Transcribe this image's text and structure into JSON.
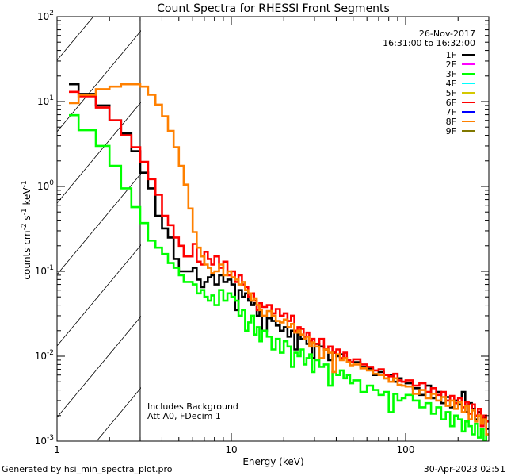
{
  "chart_data": {
    "type": "line",
    "style": "step",
    "title": "Count Spectra for RHESSI Front Segments",
    "xlabel": "Energy (keV)",
    "ylabel": {
      "base": "counts cm",
      "parts": [
        [
          "-2",
          " s"
        ],
        [
          "-1",
          " keV"
        ],
        [
          "-1",
          ""
        ]
      ]
    },
    "xscale": "log",
    "yscale": "log",
    "xlim": [
      1,
      300
    ],
    "ylim": [
      0.001,
      100
    ],
    "x_ticks": [
      {
        "value": 1,
        "label": "1"
      },
      {
        "value": 10,
        "label": "10"
      },
      {
        "value": 100,
        "label": "100"
      }
    ],
    "y_ticks": [
      {
        "value": 100,
        "base": "10",
        "exp": "2"
      },
      {
        "value": 10,
        "base": "10",
        "exp": "1"
      },
      {
        "value": 1,
        "base": "10",
        "exp": "0"
      },
      {
        "value": 0.1,
        "base": "10",
        "exp": "-1"
      },
      {
        "value": 0.01,
        "base": "10",
        "exp": "-2"
      },
      {
        "value": 0.001,
        "base": "10",
        "exp": "-3"
      }
    ],
    "shaded_region_keV": [
      1,
      3
    ],
    "date": "26-Nov-2017",
    "time_range": "16:31:00 to 16:32:00",
    "annotations": [
      "Includes Background",
      "Att A0, FDecim 1"
    ],
    "legend_placement": "top-right",
    "legend": [
      {
        "label": "1F",
        "color": "#000000"
      },
      {
        "label": "2F",
        "color": "#ff00ff"
      },
      {
        "label": "3F",
        "color": "#00ff00"
      },
      {
        "label": "4F",
        "color": "#00ffff"
      },
      {
        "label": "5F",
        "color": "#d4c800"
      },
      {
        "label": "6F",
        "color": "#ff0000"
      },
      {
        "label": "7F",
        "color": "#0000ff"
      },
      {
        "label": "8F",
        "color": "#ff8000"
      },
      {
        "label": "9F",
        "color": "#807800"
      }
    ],
    "energy_edges_keV": [
      1.17,
      1.33,
      1.67,
      2.0,
      2.33,
      2.67,
      3.0,
      3.33,
      3.67,
      4.0,
      4.33,
      4.67,
      5.0,
      5.33,
      5.67,
      6.0,
      6.33,
      6.67,
      7.0,
      7.33,
      7.67,
      8.0,
      8.5,
      9,
      9.5,
      10,
      10.5,
      11,
      11.5,
      12,
      12.5,
      13,
      13.5,
      14,
      14.5,
      15,
      16,
      17,
      18,
      19,
      20,
      21,
      22,
      23,
      24,
      25,
      26,
      27,
      28,
      29,
      30,
      32,
      34,
      36,
      38,
      40,
      42,
      44,
      46,
      48,
      50,
      55,
      60,
      65,
      70,
      75,
      80,
      85,
      90,
      95,
      100,
      110,
      120,
      130,
      140,
      150,
      160,
      170,
      180,
      190,
      200,
      210,
      220,
      230,
      240,
      250,
      260,
      270,
      280,
      290,
      300
    ],
    "series": [
      {
        "name": "1F",
        "color": "#000000",
        "values": [
          16,
          12.3,
          9.0,
          6.0,
          4.2,
          2.6,
          1.45,
          0.95,
          0.45,
          0.32,
          0.25,
          0.14,
          0.1,
          0.1,
          0.1,
          0.11,
          0.08,
          0.065,
          0.075,
          0.085,
          0.09,
          0.07,
          0.09,
          0.075,
          0.08,
          0.07,
          0.035,
          0.06,
          0.05,
          0.055,
          0.045,
          0.04,
          0.042,
          0.03,
          0.034,
          0.02,
          0.028,
          0.026,
          0.023,
          0.02,
          0.022,
          0.017,
          0.02,
          0.012,
          0.018,
          0.016,
          0.017,
          0.014,
          0.015,
          0.0095,
          0.014,
          0.013,
          0.012,
          0.009,
          0.011,
          0.01,
          0.0105,
          0.0095,
          0.009,
          0.0085,
          0.0085,
          0.0075,
          0.0072,
          0.006,
          0.0065,
          0.0055,
          0.006,
          0.005,
          0.0055,
          0.005,
          0.0048,
          0.0042,
          0.0035,
          0.0045,
          0.0032,
          0.0038,
          0.0028,
          0.0033,
          0.0025,
          0.003,
          0.0027,
          0.0038,
          0.0022,
          0.0028,
          0.0024,
          0.0018,
          0.0022,
          0.0016,
          0.0019,
          0.0014
        ]
      },
      {
        "name": "3F",
        "color": "#00ff00",
        "values": [
          6.9,
          4.6,
          3.0,
          1.75,
          0.95,
          0.57,
          0.37,
          0.23,
          0.19,
          0.16,
          0.125,
          0.11,
          0.09,
          0.075,
          0.075,
          0.07,
          0.055,
          0.06,
          0.05,
          0.045,
          0.052,
          0.04,
          0.06,
          0.045,
          0.055,
          0.05,
          0.045,
          0.03,
          0.035,
          0.02,
          0.025,
          0.03,
          0.018,
          0.022,
          0.015,
          0.02,
          0.017,
          0.012,
          0.016,
          0.011,
          0.015,
          0.013,
          0.0075,
          0.011,
          0.01,
          0.012,
          0.008,
          0.0095,
          0.0105,
          0.0065,
          0.009,
          0.0075,
          0.008,
          0.0045,
          0.0065,
          0.006,
          0.0068,
          0.0055,
          0.006,
          0.0048,
          0.0052,
          0.0038,
          0.0045,
          0.004,
          0.0035,
          0.0038,
          0.0022,
          0.0036,
          0.003,
          0.0032,
          0.0035,
          0.003,
          0.0025,
          0.0028,
          0.0021,
          0.0025,
          0.0018,
          0.0022,
          0.0015,
          0.002,
          0.0018,
          0.0013,
          0.0017,
          0.0015,
          0.0012,
          0.0016,
          0.0011,
          0.0014,
          0.001,
          0.0012
        ]
      },
      {
        "name": "6F",
        "color": "#ff0000",
        "values": [
          13,
          11.5,
          8.5,
          6.0,
          4.0,
          2.9,
          1.95,
          1.22,
          0.8,
          0.45,
          0.35,
          0.25,
          0.2,
          0.15,
          0.15,
          0.21,
          0.13,
          0.12,
          0.17,
          0.14,
          0.12,
          0.15,
          0.11,
          0.13,
          0.09,
          0.1,
          0.075,
          0.09,
          0.07,
          0.065,
          0.05,
          0.055,
          0.045,
          0.035,
          0.042,
          0.038,
          0.04,
          0.032,
          0.036,
          0.03,
          0.032,
          0.026,
          0.03,
          0.02,
          0.022,
          0.021,
          0.017,
          0.019,
          0.015,
          0.016,
          0.014,
          0.016,
          0.012,
          0.013,
          0.011,
          0.012,
          0.0095,
          0.011,
          0.009,
          0.0085,
          0.0092,
          0.008,
          0.0075,
          0.0068,
          0.007,
          0.006,
          0.0058,
          0.0062,
          0.0052,
          0.005,
          0.0052,
          0.0045,
          0.0048,
          0.0038,
          0.0042,
          0.0035,
          0.0038,
          0.003,
          0.0034,
          0.0028,
          0.0032,
          0.0025,
          0.0029,
          0.0021,
          0.0027,
          0.002,
          0.0024,
          0.0015,
          0.002,
          0.0017
        ]
      },
      {
        "name": "8F",
        "color": "#ff8000",
        "values": [
          9.6,
          12,
          14,
          15,
          16,
          16,
          15,
          12,
          9.2,
          6.7,
          4.5,
          2.9,
          1.75,
          1.05,
          0.55,
          0.29,
          0.19,
          0.15,
          0.12,
          0.11,
          0.095,
          0.1,
          0.12,
          0.09,
          0.1,
          0.085,
          0.08,
          0.07,
          0.075,
          0.06,
          0.055,
          0.045,
          0.048,
          0.04,
          0.035,
          0.03,
          0.034,
          0.03,
          0.026,
          0.025,
          0.027,
          0.022,
          0.024,
          0.019,
          0.02,
          0.018,
          0.016,
          0.017,
          0.013,
          0.0145,
          0.013,
          0.0095,
          0.012,
          0.011,
          0.0065,
          0.0105,
          0.009,
          0.0095,
          0.0085,
          0.0078,
          0.008,
          0.0072,
          0.0068,
          0.0062,
          0.006,
          0.0055,
          0.005,
          0.0055,
          0.0046,
          0.0045,
          0.0044,
          0.0036,
          0.004,
          0.0032,
          0.0036,
          0.003,
          0.0033,
          0.0026,
          0.003,
          0.0024,
          0.0029,
          0.0022,
          0.0026,
          0.0018,
          0.0023,
          0.0017,
          0.002,
          0.0016,
          0.0018,
          0.0012
        ]
      }
    ]
  },
  "footer": {
    "generated_by": "Generated by hsi_min_spectra_plot.pro",
    "timestamp": "30-Apr-2023 02:51"
  }
}
